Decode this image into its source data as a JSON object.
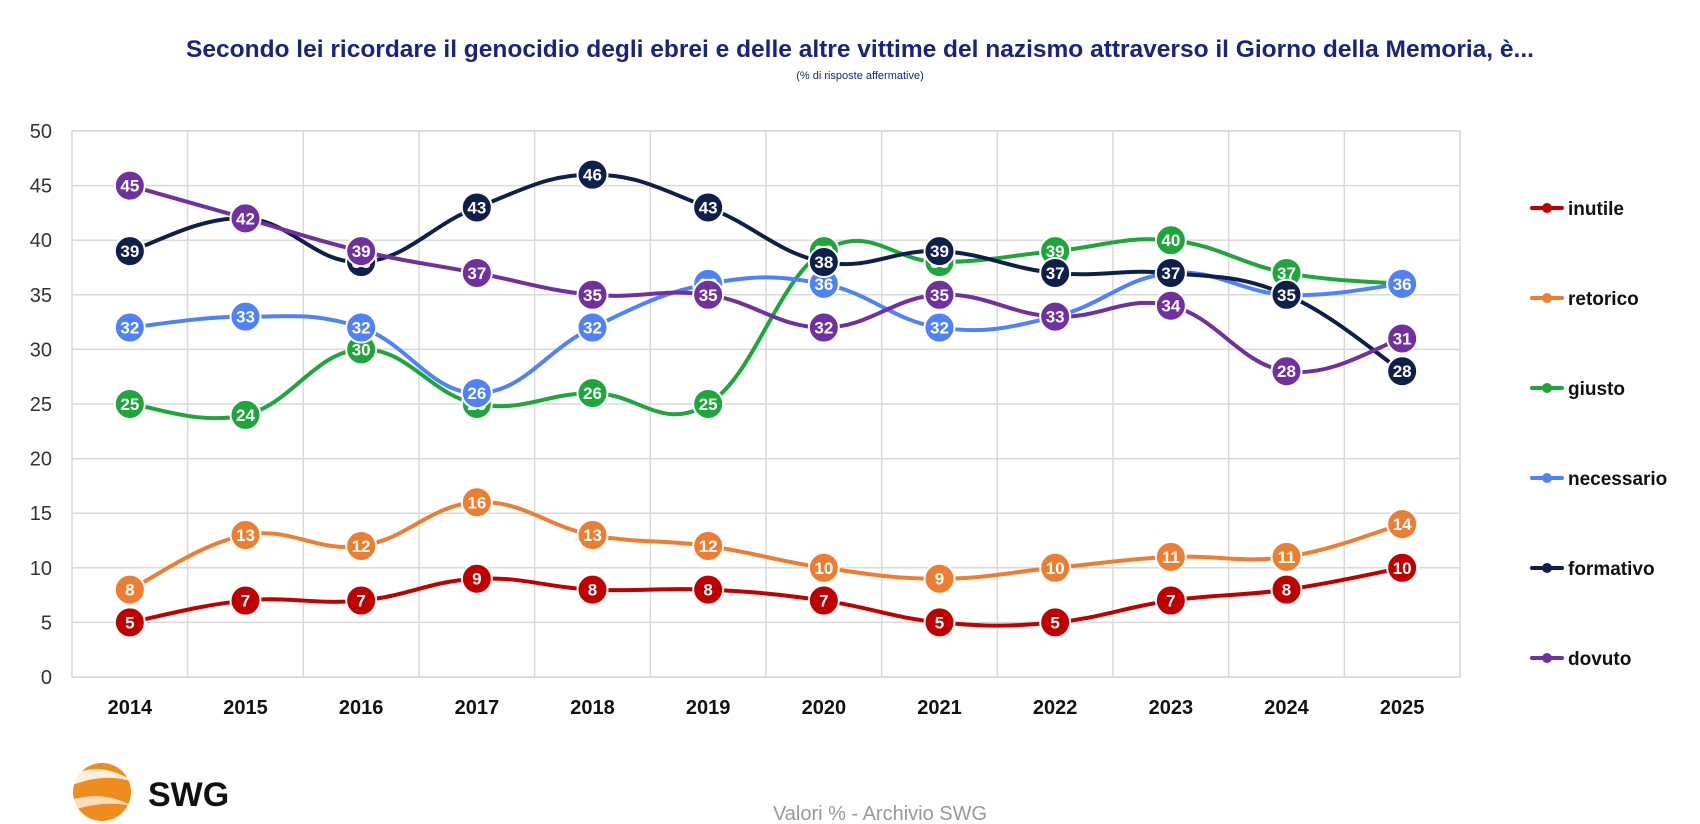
{
  "chart_data": {
    "type": "line",
    "title": "Secondo lei ricordare il genocidio degli ebrei e delle altre vittime del nazismo attraverso il Giorno della Memoria, è...",
    "subtitle": "(% di risposte affermative)",
    "xlabel": "",
    "ylabel": "",
    "ylim": [
      0,
      50
    ],
    "y_ticks": [
      0,
      5,
      10,
      15,
      20,
      25,
      30,
      35,
      40,
      45,
      50
    ],
    "grid": true,
    "legend_position": "right",
    "categories": [
      "2014",
      "2015",
      "2016",
      "2017",
      "2018",
      "2019",
      "2020",
      "2021",
      "2022",
      "2023",
      "2024",
      "2025"
    ],
    "series": [
      {
        "name": "inutile",
        "color": "#c00000",
        "values": [
          5,
          7,
          7,
          9,
          8,
          8,
          7,
          5,
          5,
          7,
          8,
          10
        ]
      },
      {
        "name": "retorico",
        "color": "#ed7d31",
        "values": [
          8,
          13,
          12,
          16,
          13,
          12,
          10,
          9,
          10,
          11,
          11,
          14
        ]
      },
      {
        "name": "giusto",
        "color": "#1ea63b",
        "values": [
          25,
          24,
          30,
          25,
          26,
          25,
          39,
          38,
          39,
          40,
          37,
          36
        ]
      },
      {
        "name": "necessario",
        "color": "#4f81f7",
        "values": [
          32,
          33,
          32,
          26,
          32,
          36,
          36,
          32,
          33,
          37,
          35,
          36
        ]
      },
      {
        "name": "formativo",
        "color": "#0f1f4b",
        "values": [
          39,
          42,
          38,
          43,
          46,
          43,
          38,
          39,
          37,
          37,
          35,
          28
        ]
      },
      {
        "name": "dovuto",
        "color": "#7030a0",
        "values": [
          45,
          42,
          39,
          37,
          35,
          35,
          32,
          35,
          33,
          34,
          28,
          31
        ]
      }
    ]
  },
  "footer": {
    "source": "Valori % - Archivio SWG",
    "logo_text": "SWG"
  },
  "colors": {
    "title": "#1a237e",
    "grid": "#d9d9d9",
    "logo_orange": "#f08c1e"
  }
}
